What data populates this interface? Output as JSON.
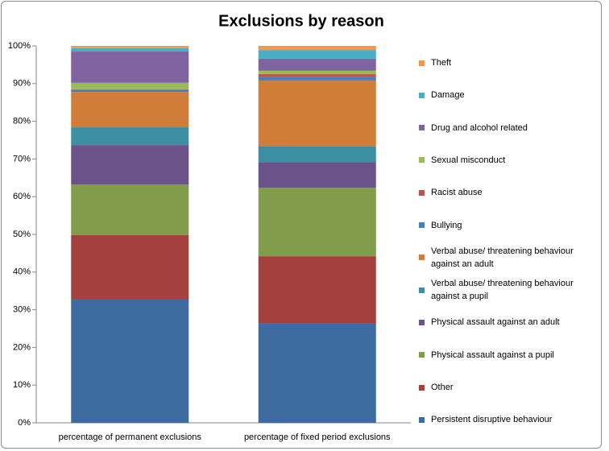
{
  "chart_data": {
    "type": "stacked_bar",
    "title": "Exclusions by reason",
    "categories": [
      "percentage of permanent exclusions",
      "percentage of fixed period exclusions"
    ],
    "series": [
      {
        "name": "Persistent disruptive behaviour",
        "color": "#3e6b9f",
        "values": [
          32.7,
          26.3
        ]
      },
      {
        "name": "Other",
        "color": "#a4403d",
        "values": [
          17.1,
          17.9
        ]
      },
      {
        "name": "Physical assault against a pupil",
        "color": "#819c4b",
        "values": [
          13.4,
          18.2
        ]
      },
      {
        "name": "Physical assault against an adult",
        "color": "#6b5289",
        "values": [
          10.5,
          6.8
        ]
      },
      {
        "name": "Verbal abuse/ threatening behaviour against a pupil",
        "color": "#3c8ea3",
        "values": [
          4.7,
          4.1
        ]
      },
      {
        "name": "Verbal abuse/ threatening behaviour against an adult",
        "color": "#cf7d39",
        "values": [
          9.4,
          17.5
        ]
      },
      {
        "name": "Bullying",
        "color": "#4a7ebd",
        "values": [
          0.5,
          0.9
        ]
      },
      {
        "name": "Racist abuse",
        "color": "#c0504d",
        "values": [
          0.2,
          0.8
        ]
      },
      {
        "name": "Sexual misconduct",
        "color": "#9bbb59",
        "values": [
          1.7,
          0.9
        ]
      },
      {
        "name": "Drug and alcohol related",
        "color": "#8064a2",
        "values": [
          8.3,
          3.2
        ]
      },
      {
        "name": "Damage",
        "color": "#4bacc6",
        "values": [
          0.9,
          2.3
        ]
      },
      {
        "name": "Theft",
        "color": "#f79646",
        "values": [
          0.6,
          1.1
        ]
      }
    ],
    "ylim": [
      0,
      100
    ],
    "yticks": [
      {
        "value": 0,
        "label": "0%"
      },
      {
        "value": 10,
        "label": "10%"
      },
      {
        "value": 20,
        "label": "20%"
      },
      {
        "value": 30,
        "label": "30%"
      },
      {
        "value": 40,
        "label": "40%"
      },
      {
        "value": 50,
        "label": "50%"
      },
      {
        "value": 60,
        "label": "60%"
      },
      {
        "value": 70,
        "label": "70%"
      },
      {
        "value": 80,
        "label": "80%"
      },
      {
        "value": 90,
        "label": "90%"
      },
      {
        "value": 100,
        "label": "100%"
      }
    ],
    "legend": "right"
  }
}
